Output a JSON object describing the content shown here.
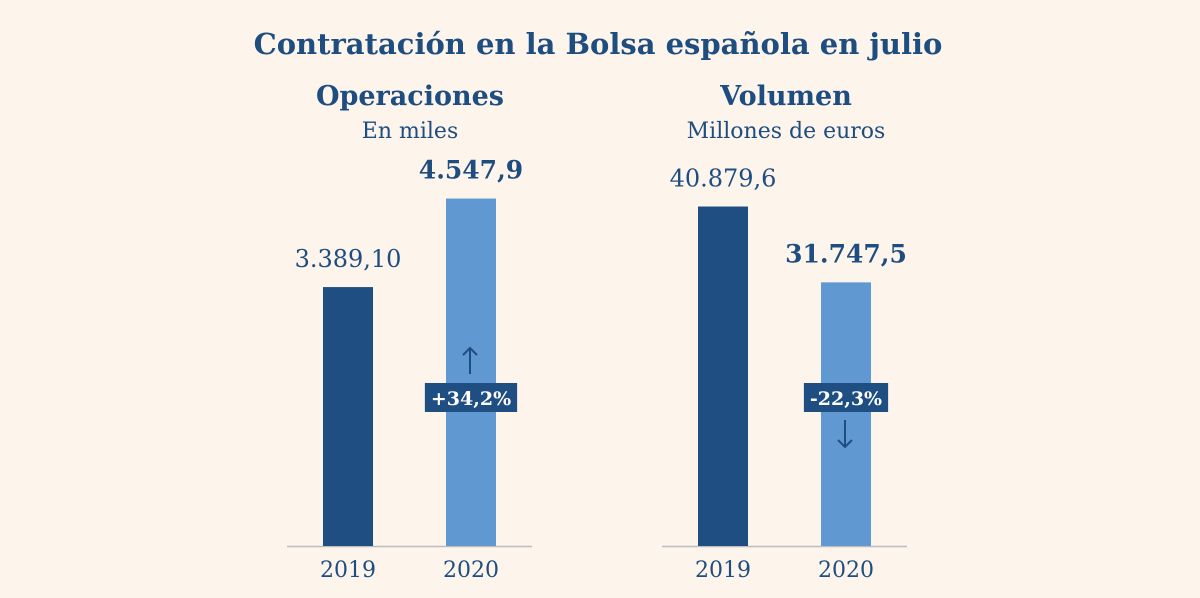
{
  "title": "Contratación en la Bolsa española en julio",
  "colors": {
    "background": "#fdf4ec",
    "text": "#1e4d80",
    "bar_2019": "#1f4e82",
    "bar_2020": "#6098d1",
    "axis": "#bdbdbd",
    "badge": "#1f4e82",
    "badge_text": "#ffffff"
  },
  "chart_data": [
    {
      "type": "bar",
      "title": "Operaciones",
      "subtitle": "En miles",
      "categories": [
        "2019",
        "2020"
      ],
      "values": [
        3389.1,
        4547.9
      ],
      "value_labels": [
        "3.389,10",
        "4.547,9"
      ],
      "highlight_index": 1,
      "change_label": "+34,2%",
      "change_direction": "up",
      "ylim": [
        0,
        5000
      ]
    },
    {
      "type": "bar",
      "title": "Volumen",
      "subtitle": "Millones de euros",
      "categories": [
        "2019",
        "2020"
      ],
      "values": [
        40879.6,
        31747.5
      ],
      "value_labels": [
        "40.879,6",
        "31.747,5"
      ],
      "highlight_index": 1,
      "change_label": "-22,3%",
      "change_direction": "down",
      "ylim": [
        0,
        46000
      ]
    }
  ]
}
